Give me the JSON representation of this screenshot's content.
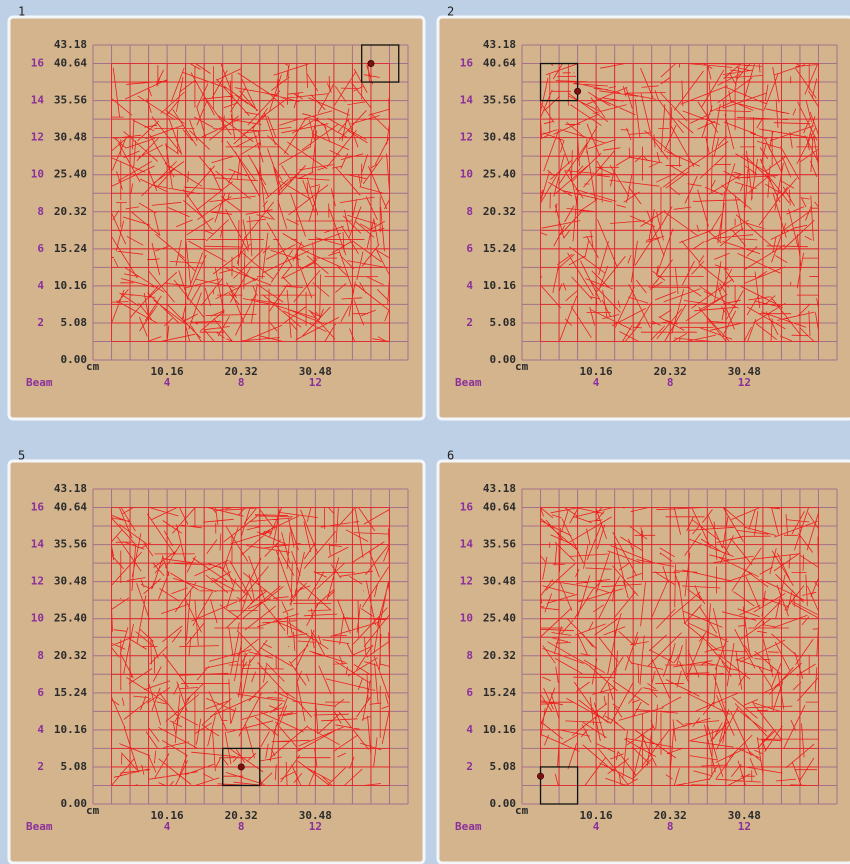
{
  "axis": {
    "y_cm_ticks": [
      {
        "value": 0,
        "label": "0.00"
      },
      5.08,
      10.16,
      15.24,
      20.32,
      {
        "value": 25.4,
        "label": "25.40"
      },
      30.48,
      35.56,
      40.64,
      43.18
    ],
    "y_beam_ticks": [
      2,
      4,
      6,
      8,
      10,
      12,
      14,
      16
    ],
    "x_cm_ticks": [
      10.16,
      20.32,
      30.48
    ],
    "x_beam_ticks": [
      4,
      8,
      12
    ],
    "unit_label": "cm",
    "beam_label": "Beam"
  },
  "panels": [
    {
      "label": "1",
      "marker": {
        "x": 38.1,
        "y": 40.64
      },
      "box": {
        "x": 36.83,
        "y": 38.1,
        "size": 5.08
      }
    },
    {
      "label": "2",
      "marker": {
        "x": 7.62,
        "y": 36.83
      },
      "box": {
        "x": 2.54,
        "y": 35.56,
        "size": 5.08
      }
    },
    {
      "label": "5",
      "marker": {
        "x": 20.32,
        "y": 5.08
      },
      "box": {
        "x": 17.78,
        "y": 2.54,
        "size": 5.08
      }
    },
    {
      "label": "6",
      "marker": {
        "x": 2.54,
        "y": 3.81
      },
      "box": {
        "x": 2.54,
        "y": 0,
        "size": 5.08
      }
    }
  ]
}
